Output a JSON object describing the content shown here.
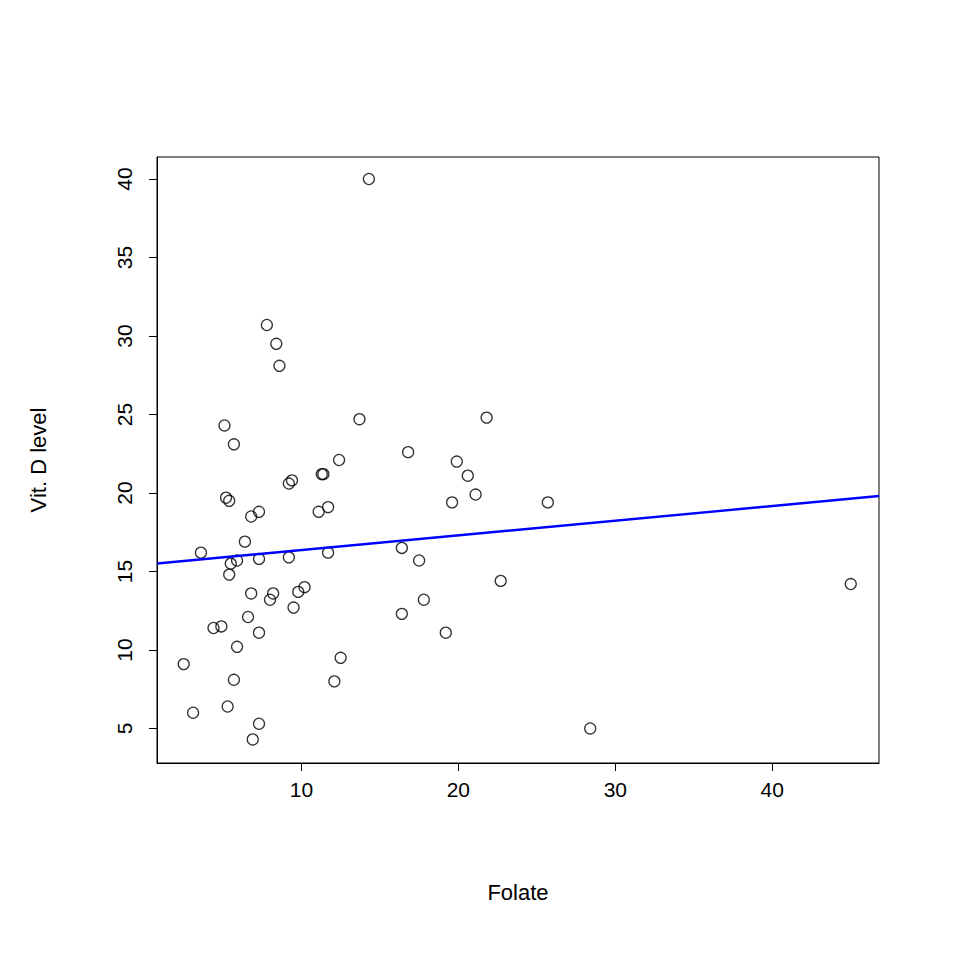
{
  "chart_data": {
    "type": "scatter",
    "x_label": "Folate",
    "y_label": "Vit. D level",
    "xlim": [
      0.8,
      46.8
    ],
    "ylim": [
      2.8,
      41.4
    ],
    "xticks": [
      10,
      20,
      30,
      40
    ],
    "yticks": [
      5,
      10,
      15,
      20,
      25,
      30,
      35,
      40
    ],
    "grid": false,
    "series": [
      {
        "type": "scatter",
        "marker": "circle-open",
        "color": "#000000",
        "x": [
          2.5,
          3.1,
          3.6,
          4.4,
          4.9,
          5.1,
          5.2,
          5.4,
          5.3,
          5.4,
          5.5,
          5.7,
          5.7,
          5.9,
          5.9,
          6.4,
          6.6,
          6.8,
          6.8,
          6.9,
          7.3,
          7.3,
          7.3,
          7.3,
          7.8,
          8.0,
          8.2,
          8.4,
          8.6,
          9.2,
          9.2,
          9.4,
          9.5,
          9.8,
          10.2,
          11.1,
          11.3,
          11.4,
          11.7,
          11.7,
          12.1,
          12.4,
          12.5,
          13.7,
          14.3,
          16.4,
          16.4,
          16.8,
          17.5,
          17.8,
          19.2,
          19.6,
          19.9,
          20.6,
          21.1,
          21.8,
          22.7,
          25.7,
          28.4,
          45.0
        ],
        "values": [
          9.1,
          6.0,
          16.2,
          11.4,
          11.5,
          24.3,
          19.7,
          19.5,
          6.4,
          14.8,
          15.5,
          23.1,
          8.1,
          15.7,
          10.2,
          16.9,
          12.1,
          13.6,
          18.5,
          4.3,
          18.8,
          15.8,
          11.1,
          5.3,
          30.7,
          13.2,
          13.6,
          29.5,
          28.1,
          20.6,
          15.9,
          20.8,
          12.7,
          13.7,
          14.0,
          18.8,
          21.2,
          21.2,
          19.1,
          16.2,
          8.0,
          22.1,
          9.5,
          24.7,
          40.0,
          16.5,
          12.3,
          22.6,
          15.7,
          13.2,
          11.1,
          19.4,
          22.0,
          21.1,
          19.9,
          24.8,
          14.4,
          19.4,
          5.0,
          14.2
        ]
      },
      {
        "type": "line",
        "line_style": "solid",
        "color": "#0000ff",
        "x": [
          0.8,
          46.8
        ],
        "values": [
          15.5,
          19.8
        ]
      }
    ]
  }
}
